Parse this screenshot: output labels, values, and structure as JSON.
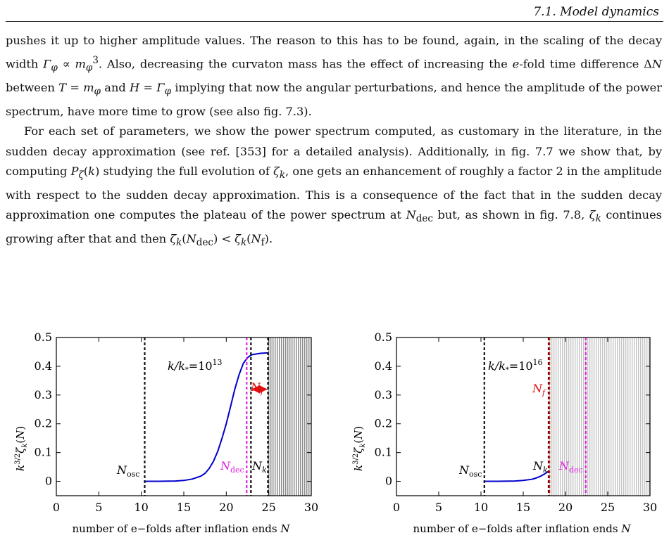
{
  "header": {
    "section": "7.1. Model dynamics"
  },
  "paragraphs": [
    "pushes it up to higher amplitude values. The reason to this has to be found, again, in the scaling of the decay width Γ_φ ∝ m_φ³. Also, decreasing the curvaton mass has the effect of increasing the e-fold time difference ΔN between T = m_φ and H = Γ_φ implying that now the angular perturbations, and hence the amplitude of the power spectrum, have more time to grow (see also fig. 7.3).",
    "For each set of parameters, we show the power spectrum computed, as customary in the literature, in the sudden decay approximation (see ref. [353] for a detailed analysis). Additionally, in fig. 7.7 we show that, by computing P_ζ(k) studying the full evolution of ζ_k, one gets an enhancement of roughly a factor 2 in the amplitude with respect to the sudden decay approximation. This is a consequence of the fact that in the sudden decay approximation one computes the plateau of the power spectrum at N_dec but, as shown in fig. 7.8, ζ_k continues growing after that and then ζ_k(N_dec) < ζ_k(N_f)."
  ],
  "colors": {
    "curve": "#0000cc",
    "dec": "#e020e0",
    "nf": "#e01010",
    "hatch": "#555555"
  },
  "chart_data": [
    {
      "type": "line",
      "annotation": "k/k* = 10^13",
      "xlabel": "number of e−folds after inflation ends N",
      "ylabel": "k^{3/2} ζ_k(N)",
      "xlim": [
        0,
        30
      ],
      "ylim": [
        -0.05,
        0.5
      ],
      "xticks": [
        0,
        5,
        10,
        15,
        20,
        25,
        30
      ],
      "yticks": [
        0,
        0.1,
        0.2,
        0.3,
        0.4,
        0.5
      ],
      "xtick_labels": [
        "0",
        "5",
        "10",
        "15",
        "20",
        "25",
        "30"
      ],
      "ytick_labels": [
        "0",
        "0.1",
        "0.2",
        "0.3",
        "0.4",
        "0.5"
      ],
      "series": [
        {
          "x": [
            10.4,
            12,
            14,
            15,
            16,
            17,
            17.5,
            18,
            18.5,
            19,
            19.5,
            20,
            20.5,
            21,
            21.5,
            22,
            22.5,
            23,
            24,
            25
          ],
          "y": [
            0,
            0,
            0.001,
            0.003,
            0.008,
            0.018,
            0.028,
            0.045,
            0.07,
            0.105,
            0.15,
            0.2,
            0.26,
            0.32,
            0.37,
            0.41,
            0.43,
            0.44,
            0.445,
            0.447
          ]
        }
      ],
      "vlines": [
        {
          "x": 10.4,
          "label": "N_osc",
          "color": "black"
        },
        {
          "x": 22.4,
          "label": "N_dec",
          "color": "magenta"
        },
        {
          "x": 22.9,
          "label": "",
          "color": "black"
        },
        {
          "x": 24.9,
          "label": "N_k",
          "color": "black"
        }
      ],
      "nf_arrow": {
        "x_from": 22.9,
        "x_to": 24.9,
        "label": "N_f"
      },
      "shaded_from": 24.9
    },
    {
      "type": "line",
      "annotation": "k/k* = 10^16",
      "xlabel": "number of e−folds after inflation ends N",
      "ylabel": "k^{3/2} ζ_k(N)",
      "xlim": [
        0,
        30
      ],
      "ylim": [
        -0.05,
        0.5
      ],
      "xticks": [
        0,
        5,
        10,
        15,
        20,
        25,
        30
      ],
      "yticks": [
        0,
        0.1,
        0.2,
        0.3,
        0.4,
        0.5
      ],
      "xtick_labels": [
        "0",
        "5",
        "10",
        "15",
        "20",
        "25",
        "30"
      ],
      "ytick_labels": [
        "0",
        "0.1",
        "0.2",
        "0.3",
        "0.4",
        "0.5"
      ],
      "series": [
        {
          "x": [
            10.4,
            12,
            14,
            15,
            16,
            16.5,
            17,
            17.5,
            18
          ],
          "y": [
            0,
            0,
            0.001,
            0.003,
            0.007,
            0.011,
            0.017,
            0.025,
            0.035
          ]
        }
      ],
      "vlines": [
        {
          "x": 10.4,
          "label": "N_osc",
          "color": "black"
        },
        {
          "x": 18,
          "label": "N_k",
          "color": "black"
        },
        {
          "x": 18.1,
          "label": "N_f",
          "color": "red"
        },
        {
          "x": 22.4,
          "label": "N_dec",
          "color": "magenta"
        }
      ],
      "shaded_from": 18
    }
  ]
}
